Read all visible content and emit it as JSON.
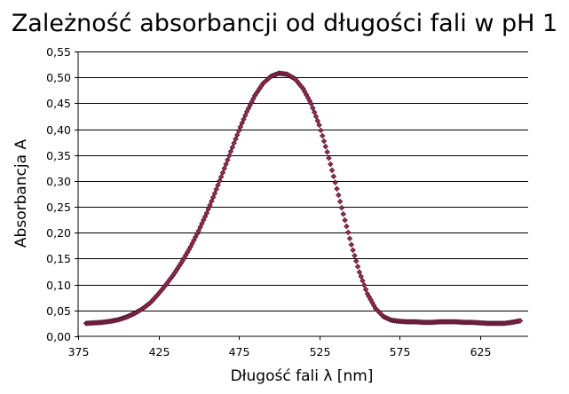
{
  "chart_data": {
    "type": "scatter",
    "title": "Zależność absorbancji od długości fali w pH 1",
    "xlabel": "Długość fali λ [nm]",
    "ylabel": "Absorbancja A",
    "xlim": [
      375,
      655
    ],
    "ylim": [
      0,
      0.55
    ],
    "x_ticks": [
      375,
      425,
      475,
      525,
      575,
      625
    ],
    "x_tick_labels": [
      "375",
      "425",
      "475",
      "525",
      "575",
      "625"
    ],
    "y_ticks": [
      0,
      0.05,
      0.1,
      0.15,
      0.2,
      0.25,
      0.3,
      0.35,
      0.4,
      0.45,
      0.5,
      0.55
    ],
    "y_tick_labels": [
      "0,00",
      "0,05",
      "0,10",
      "0,15",
      "0,20",
      "0,25",
      "0,30",
      "0,35",
      "0,40",
      "0,45",
      "0,50",
      "0,55"
    ],
    "grid": "horizontal",
    "legend": "none",
    "marker": "diamond",
    "marker_color": "#9c2a55",
    "series": [
      {
        "x": [
          380,
          385,
          390,
          395,
          400,
          405,
          410,
          415,
          420,
          425,
          430,
          435,
          440,
          445,
          450,
          455,
          460,
          465,
          470,
          475,
          480,
          485,
          490,
          495,
          500,
          505,
          510,
          515,
          520,
          525,
          530,
          535,
          540,
          545,
          550,
          555,
          560,
          565,
          570,
          575,
          580,
          585,
          590,
          595,
          600,
          605,
          610,
          615,
          620,
          625,
          630,
          635,
          640,
          645,
          650
        ],
        "y": [
          0.025,
          0.026,
          0.027,
          0.029,
          0.032,
          0.037,
          0.044,
          0.053,
          0.065,
          0.082,
          0.101,
          0.122,
          0.146,
          0.173,
          0.204,
          0.238,
          0.276,
          0.316,
          0.357,
          0.397,
          0.434,
          0.465,
          0.488,
          0.502,
          0.508,
          0.506,
          0.497,
          0.478,
          0.449,
          0.408,
          0.356,
          0.297,
          0.236,
          0.177,
          0.124,
          0.082,
          0.054,
          0.038,
          0.031,
          0.029,
          0.028,
          0.028,
          0.027,
          0.027,
          0.028,
          0.028,
          0.028,
          0.027,
          0.027,
          0.026,
          0.025,
          0.025,
          0.025,
          0.027,
          0.03
        ]
      }
    ]
  }
}
